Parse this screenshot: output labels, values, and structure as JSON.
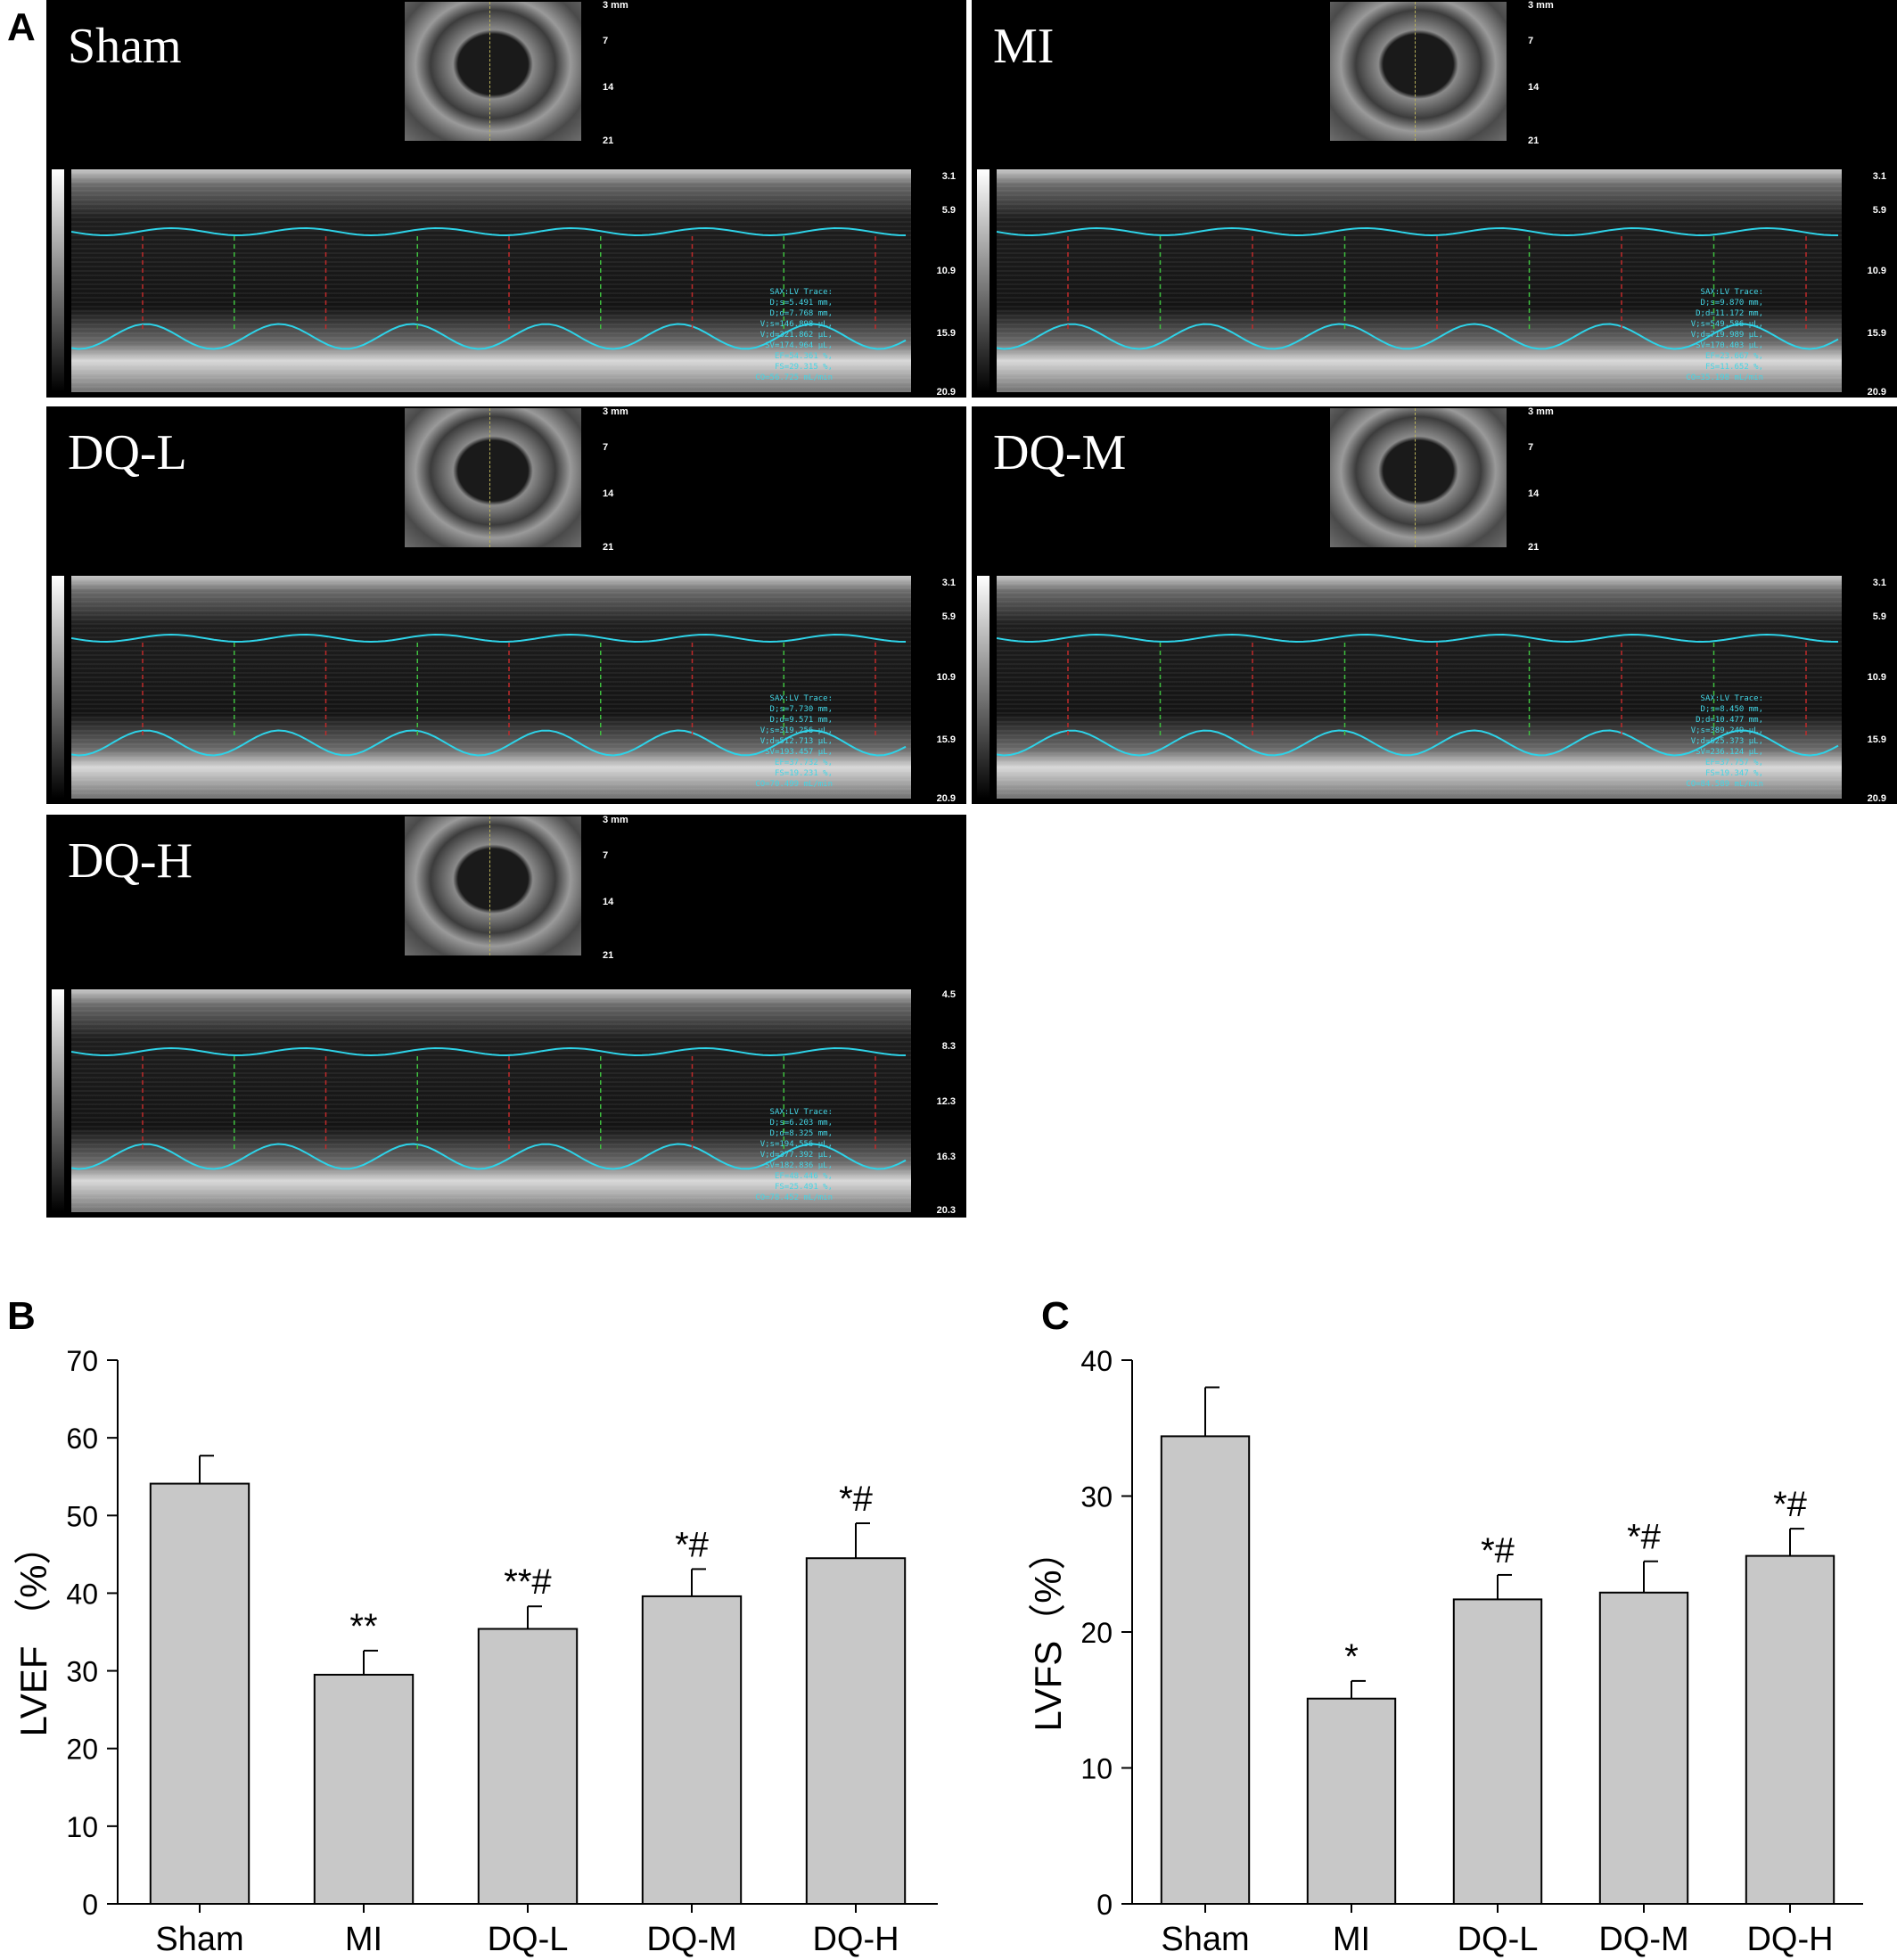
{
  "panels": {
    "a": "A",
    "b": "B",
    "c": "C"
  },
  "echo": [
    {
      "label": "Sham",
      "depth": [
        "3 mm",
        "7",
        "14",
        "21"
      ],
      "scale": [
        "3.1",
        "5.9",
        "10.9",
        "15.9",
        "20.9"
      ],
      "readout": [
        "SAX:LV Trace:",
        "D;s=5.491 mm,",
        "D;d=7.768 mm,",
        "V;s=146.898 μL,",
        "V;d=321.862 μL,",
        "SV=174.964 μL,",
        "EF=54.361 %,",
        "FS=29.315 %,",
        "CO=56.725 mL/min"
      ]
    },
    {
      "label": "MI",
      "depth": [
        "3 mm",
        "7",
        "14",
        "21"
      ],
      "scale": [
        "3.1",
        "5.9",
        "10.9",
        "15.9",
        "20.9"
      ],
      "readout": [
        "SAX:LV Trace:",
        "D;s=9.870 mm,",
        "D;d=11.172 mm,",
        "V;s=549.586 μL,",
        "V;d=719.989 μL,",
        "SV=170.403 μL,",
        "EF=23.667 %,",
        "FS=11.652 %,",
        "CO=35.198 mL/min"
      ]
    },
    {
      "label": "DQ-L",
      "depth": [
        "3 mm",
        "7",
        "14",
        "21"
      ],
      "scale": [
        "3.1",
        "5.9",
        "10.9",
        "15.9",
        "20.9"
      ],
      "readout": [
        "SAX:LV Trace:",
        "D;s=7.730 mm,",
        "D;d=9.571 mm,",
        "V;s=319.256 μL,",
        "V;d=512.713 μL,",
        "SV=193.457 μL,",
        "EF=37.732 %,",
        "FS=19.231 %,",
        "CO=70.499 mL/min"
      ]
    },
    {
      "label": "DQ-M",
      "depth": [
        "3 mm",
        "7",
        "14",
        "21"
      ],
      "scale": [
        "3.1",
        "5.9",
        "10.9",
        "15.9",
        "20.9"
      ],
      "readout": [
        "SAX:LV Trace:",
        "D;s=8.450 mm,",
        "D;d=10.477 mm,",
        "V;s=389.249 μL,",
        "V;d=625.373 μL,",
        "SV=236.124 μL,",
        "EF=37.757 %,",
        "FS=19.347 %,",
        "CO=84.589 mL/min"
      ]
    },
    {
      "label": "DQ-H",
      "depth": [
        "3 mm",
        "7",
        "14",
        "21"
      ],
      "scale": [
        "4.5",
        "8.3",
        "12.3",
        "16.3",
        "20.3"
      ],
      "readout": [
        "SAX:LV Trace:",
        "D;s=6.203 mm,",
        "D;d=8.325 mm,",
        "V;s=194.556 μL,",
        "V;d=377.392 μL,",
        "SV=182.836 μL,",
        "EF=48.446 %,",
        "FS=25.491 %,",
        "CO=78.452 mL/min"
      ]
    }
  ],
  "chart_data": [
    {
      "type": "bar",
      "panel": "B",
      "categories": [
        "Sham",
        "MI",
        "DQ-L",
        "DQ-M",
        "DQ-H"
      ],
      "values": [
        54.1,
        29.5,
        35.4,
        39.6,
        44.5
      ],
      "errors": [
        3.6,
        3.1,
        2.9,
        3.5,
        4.5
      ],
      "annotations": [
        "",
        "**",
        "**#",
        "*#",
        "*#"
      ],
      "ylabel": "LVEF （%）",
      "ylim": [
        0,
        70
      ],
      "yticks": [
        0,
        10,
        20,
        30,
        40,
        50,
        60,
        70
      ],
      "bar_color": "#c8c8c8"
    },
    {
      "type": "bar",
      "panel": "C",
      "categories": [
        "Sham",
        "MI",
        "DQ-L",
        "DQ-M",
        "DQ-H"
      ],
      "values": [
        34.4,
        15.1,
        22.4,
        22.9,
        25.6
      ],
      "errors": [
        3.6,
        1.3,
        1.8,
        2.3,
        2.0
      ],
      "annotations": [
        "",
        "*",
        "*#",
        "*#",
        "*#"
      ],
      "ylabel": "LVFS（%）",
      "ylim": [
        0,
        40
      ],
      "yticks": [
        0,
        10,
        20,
        30,
        40
      ],
      "bar_color": "#c8c8c8"
    }
  ]
}
